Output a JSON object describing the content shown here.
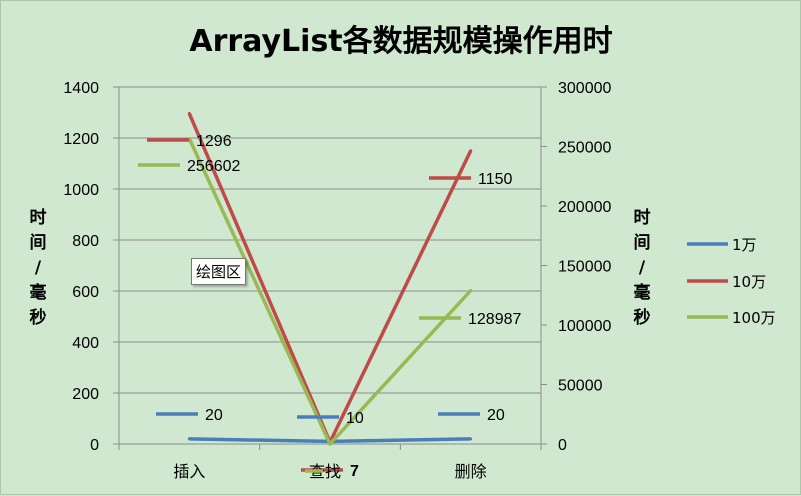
{
  "chart_data": {
    "type": "line",
    "title": "ArrayList各数据规模操作用时",
    "categories": [
      "插入",
      "查找",
      "删除"
    ],
    "y_left_label": "时间/毫秒",
    "y_right_label": "时间/毫秒",
    "y_left_range": [
      0,
      1400
    ],
    "y_left_ticks": [
      "0",
      "200",
      "400",
      "600",
      "800",
      "1000",
      "1200",
      "1400"
    ],
    "y_right_range": [
      0,
      300000
    ],
    "y_right_ticks": [
      "0",
      "50000",
      "100000",
      "150000",
      "200000",
      "250000",
      "300000"
    ],
    "grid": true,
    "legend_position": "right",
    "series": [
      {
        "name": "1万",
        "axis": "left",
        "color": "#4a7ebb",
        "values": [
          20,
          10,
          20
        ],
        "labels": [
          "20",
          "10",
          "20"
        ]
      },
      {
        "name": "10万",
        "axis": "left",
        "color": "#be4b48",
        "values": [
          1296,
          7,
          1150
        ],
        "labels": [
          "1296",
          "7",
          "1150"
        ]
      },
      {
        "name": "100万",
        "axis": "right",
        "color": "#98b954",
        "values": [
          256602,
          0,
          128987
        ],
        "labels": [
          "256602",
          "",
          "128987"
        ]
      }
    ]
  },
  "tooltip": "绘图区"
}
